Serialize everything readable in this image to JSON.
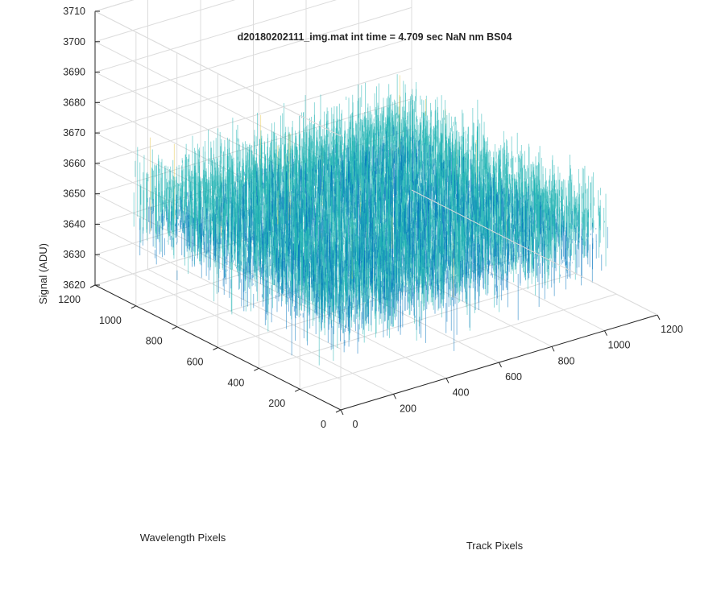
{
  "chart_data": {
    "type": "surface",
    "title": "d20180202111_img.mat int time = 4.709 sec  NaN nm BS04",
    "xlabel": "Track Pixels",
    "ylabel": "Wavelength Pixels",
    "zlabel": "Signal (ADU)",
    "xlim": [
      0,
      1200
    ],
    "ylim": [
      0,
      1200
    ],
    "zlim": [
      3620,
      3710
    ],
    "xticks": [
      "0",
      "200",
      "400",
      "600",
      "800",
      "1000",
      "1200"
    ],
    "yticks": [
      "0",
      "200",
      "400",
      "600",
      "800",
      "1000",
      "1200"
    ],
    "zticks": [
      "3620",
      "3630",
      "3640",
      "3650",
      "3660",
      "3670",
      "3680",
      "3690",
      "3700",
      "3710"
    ],
    "data_extent": {
      "x": [
        1,
        1024
      ],
      "y": [
        1,
        1024
      ]
    },
    "signal_summary": {
      "mean": 3653,
      "min": 3622,
      "max": 3706
    },
    "grid": true,
    "colormap": "parula",
    "colors": {
      "low": "#0072bd",
      "mid": "#1fb3b3",
      "high": "#e6c74a",
      "axis": "#262626",
      "grid": "#dcdcdc"
    }
  }
}
